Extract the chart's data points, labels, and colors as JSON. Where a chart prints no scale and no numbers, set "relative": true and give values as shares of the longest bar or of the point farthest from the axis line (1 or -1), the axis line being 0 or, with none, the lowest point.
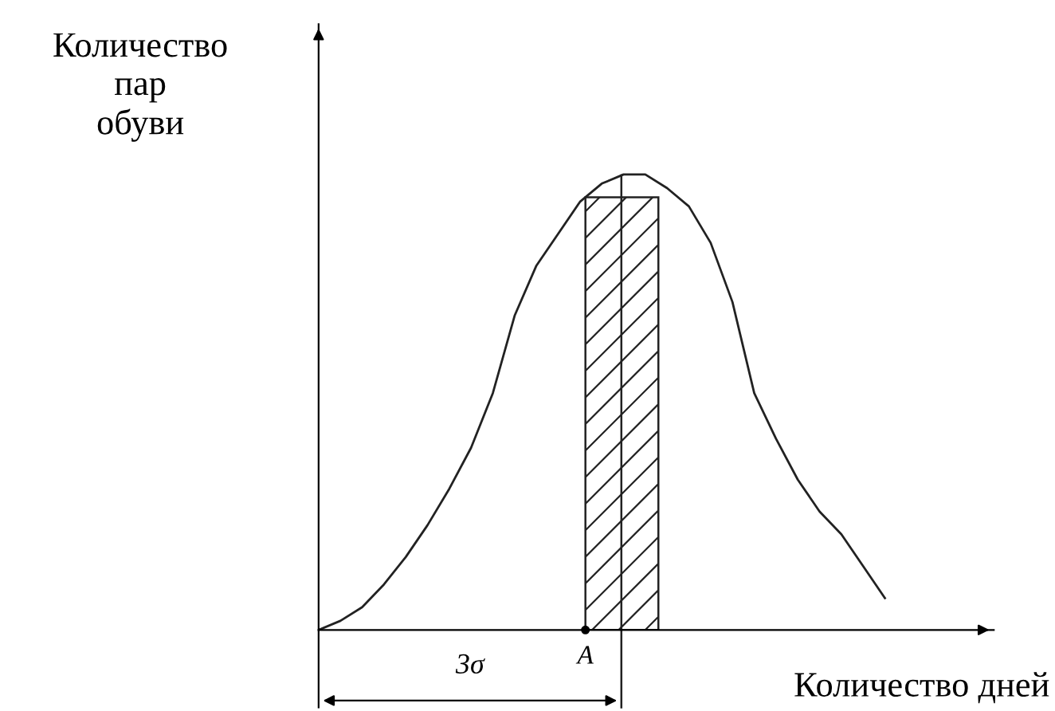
{
  "chart_data": {
    "type": "line",
    "relative": true,
    "xlabel": "Количество дней",
    "ylabel": "Количество\nпар\nобуви",
    "categories": [
      null,
      null,
      null,
      null,
      null,
      null,
      null,
      null,
      null,
      null,
      null,
      null,
      null,
      null,
      null,
      null,
      null,
      null,
      null,
      null,
      null,
      null,
      null,
      null,
      null,
      null,
      null,
      null,
      null,
      null,
      null
    ],
    "series": [
      {
        "color": "#222222",
        "values": [
          0,
          0.02,
          0.05,
          0.1,
          0.16,
          0.23,
          0.31,
          0.4,
          0.52,
          0.69,
          0.8,
          0.87,
          0.94,
          0.98,
          1.0,
          1.0,
          0.97,
          0.93,
          0.85,
          0.72,
          0.52,
          0.42,
          0.33,
          0.26,
          0.21,
          0.14,
          0.07,
          null,
          null,
          null,
          null
        ]
      }
    ],
    "annotations": [
      "3σ",
      "A"
    ],
    "legend": false,
    "marker": "none",
    "line_style": "solid"
  }
}
